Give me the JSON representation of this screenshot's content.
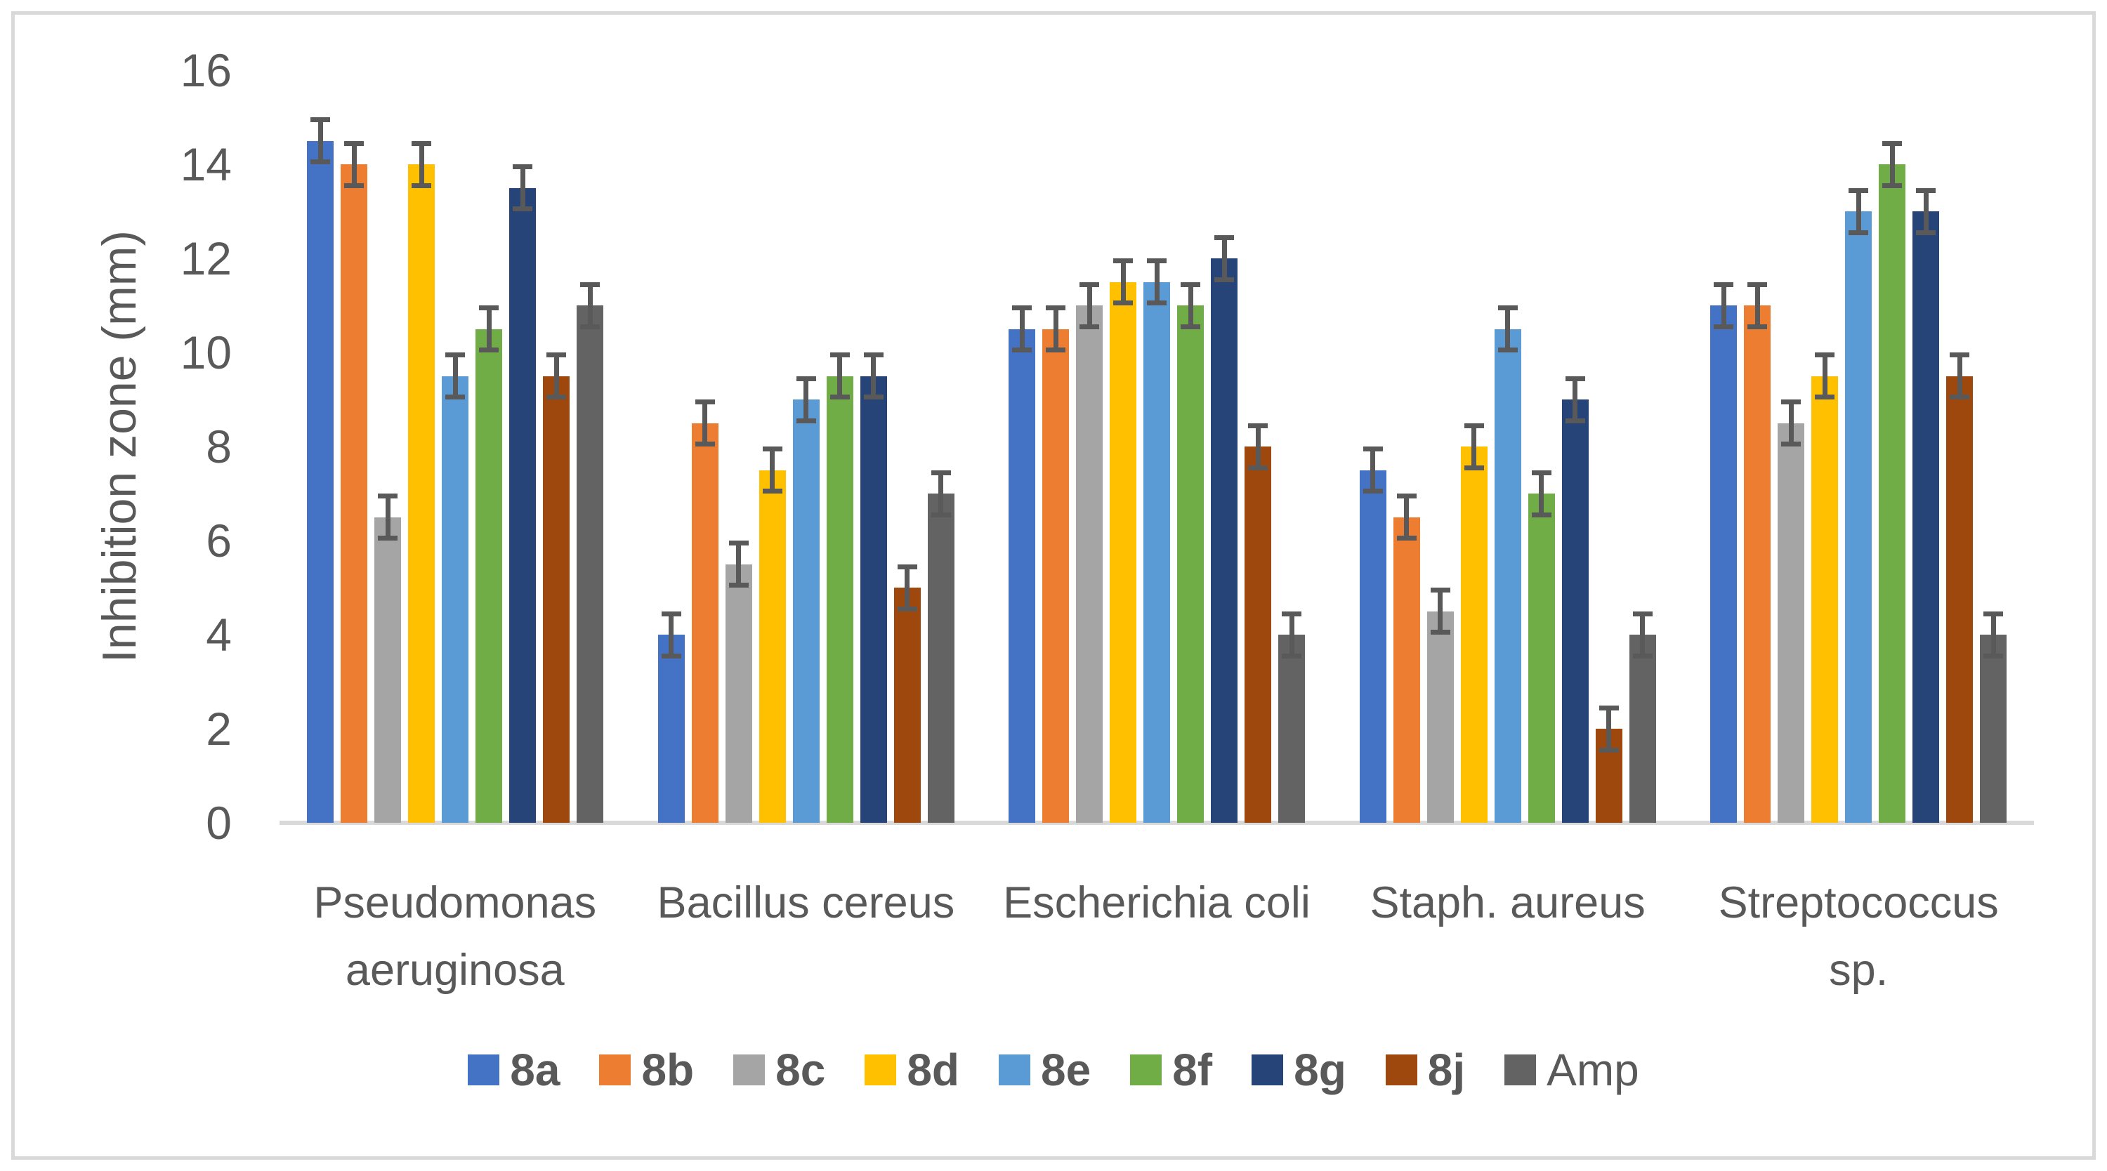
{
  "chart_data": {
    "type": "bar",
    "title": "",
    "xlabel": "",
    "ylabel": "Inhibition zone (mm)",
    "ylim": [
      0,
      16
    ],
    "y_ticks": [
      0,
      2,
      4,
      6,
      8,
      10,
      12,
      14,
      16
    ],
    "grid": false,
    "legend_position": "bottom",
    "error_bar": 0.5,
    "categories": [
      "Pseudomonas aeruginosa",
      "Bacillus cereus",
      "Escherichia coli",
      "Staph. aureus",
      "Streptococcus sp."
    ],
    "category_lines": [
      [
        "Pseudomonas",
        "aeruginosa"
      ],
      [
        "Bacillus cereus"
      ],
      [
        "Escherichia coli"
      ],
      [
        "Staph. aureus"
      ],
      [
        "Streptococcus",
        "sp."
      ]
    ],
    "series": [
      {
        "name": "8a",
        "color": "#4472C4",
        "bold": true,
        "values": [
          14.5,
          4,
          10.5,
          7.5,
          11
        ]
      },
      {
        "name": "8b",
        "color": "#ED7D31",
        "bold": true,
        "values": [
          14,
          8.5,
          10.5,
          6.5,
          11
        ]
      },
      {
        "name": "8c",
        "color": "#A5A5A5",
        "bold": true,
        "values": [
          6.5,
          5.5,
          11,
          4.5,
          8.5
        ]
      },
      {
        "name": "8d",
        "color": "#FFC000",
        "bold": true,
        "values": [
          14,
          7.5,
          11.5,
          8,
          9.5
        ]
      },
      {
        "name": "8e",
        "color": "#5B9BD5",
        "bold": true,
        "values": [
          9.5,
          9,
          11.5,
          10.5,
          13
        ]
      },
      {
        "name": "8f",
        "color": "#70AD47",
        "bold": true,
        "values": [
          10.5,
          9.5,
          11,
          7,
          14
        ]
      },
      {
        "name": "8g",
        "color": "#264478",
        "bold": true,
        "values": [
          13.5,
          9.5,
          12,
          9,
          13
        ]
      },
      {
        "name": "8j",
        "color": "#9E480E",
        "bold": true,
        "values": [
          9.5,
          5,
          8,
          2,
          9.5
        ]
      },
      {
        "name": "Amp",
        "color": "#636363",
        "bold": false,
        "values": [
          11,
          7,
          4,
          4,
          4
        ]
      }
    ],
    "colors": {
      "text": "#595959",
      "axis_line": "#D9D9D9",
      "error_bar": "#595959",
      "frame_border": "#D9D9D9",
      "background": "#FFFFFF"
    }
  }
}
